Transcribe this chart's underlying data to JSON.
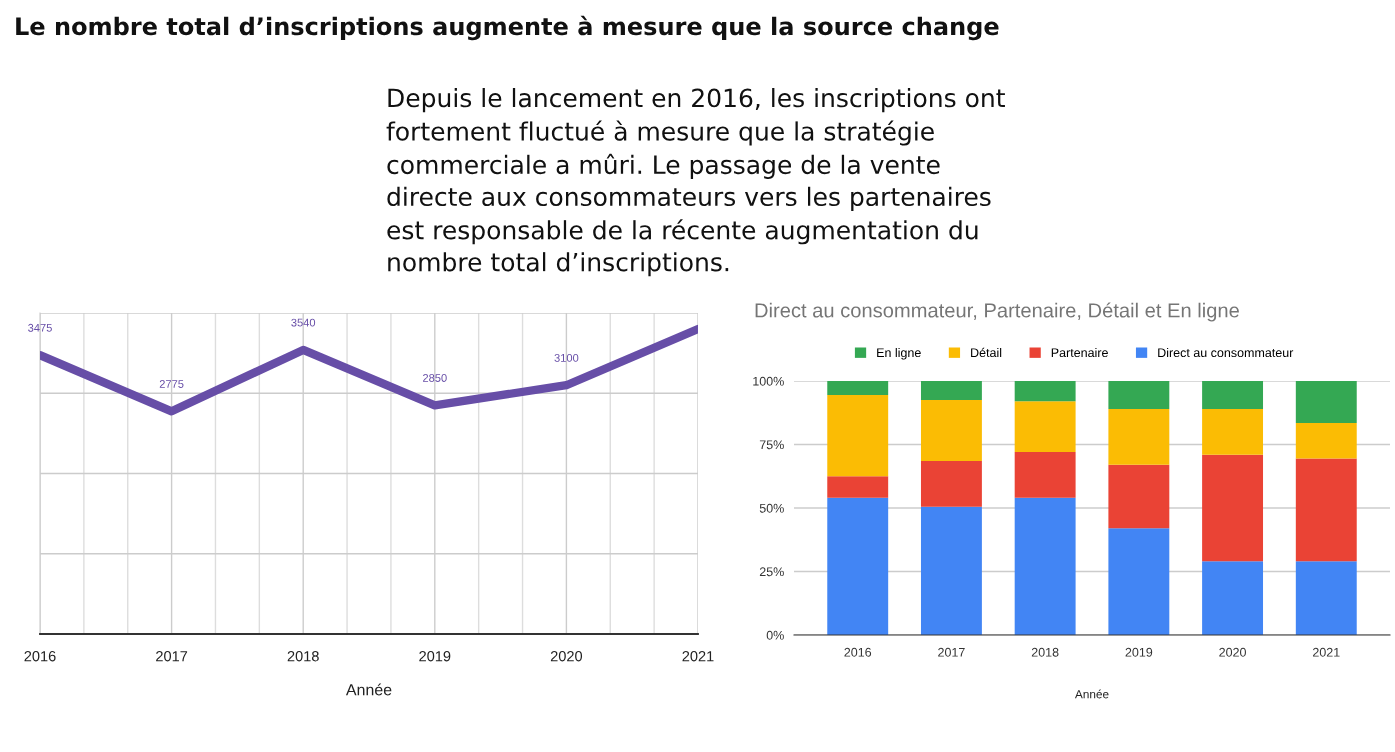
{
  "chart_data": [
    {
      "type": "other",
      "title": "Le nombre total d’inscriptions augmente à mesure que la source change",
      "annotations": [
        "Depuis le lancement en 2016, les inscriptions ont fortement fluctué à mesure que la stratégie commerciale a mûri. Le passage de la vente directe aux consommateurs vers les partenaires est responsable de la récente augmentation du nombre total d’inscriptions."
      ]
    },
    {
      "type": "line",
      "xlabel": "Année",
      "x": [
        2016,
        2017,
        2018,
        2019,
        2020,
        2021
      ],
      "series": [
        {
          "color": "#674ea7",
          "values": [
            3475,
            2775,
            3540,
            2850,
            3100,
            3800
          ],
          "value_labels": [
            "3475",
            "2775",
            "3540",
            "2850",
            "3100",
            null
          ]
        }
      ],
      "xlim": [
        2016,
        2021
      ],
      "xticks": [
        2016,
        2017,
        2018,
        2019,
        2020,
        2021
      ],
      "ylim": [
        0,
        4000
      ],
      "yticks": [
        {
          "value": 0,
          "label": null
        },
        {
          "value": 1000,
          "label": null
        },
        {
          "value": 2000,
          "label": null
        },
        {
          "value": 3000,
          "label": null
        },
        {
          "value": 4000,
          "label": null
        }
      ],
      "tick_labels": "x",
      "grid": true,
      "line_style": "solid"
    },
    {
      "type": "bar",
      "title": "Direct au consommateur, Partenaire, Détail et En ligne",
      "xlabel": "Année",
      "categories": [
        "2016",
        "2017",
        "2018",
        "2019",
        "2020",
        "2021"
      ],
      "stacked": true,
      "series": [
        {
          "name": "Direct au consommateur",
          "color": "#4285f4",
          "values": [
            54,
            50.5,
            54,
            42,
            29,
            29
          ]
        },
        {
          "name": "Partenaire",
          "color": "#ea4335",
          "values": [
            8.5,
            18,
            18,
            25,
            42,
            40.5
          ]
        },
        {
          "name": "Détail",
          "color": "#fbbc04",
          "values": [
            32,
            24,
            20,
            22,
            18,
            14
          ]
        },
        {
          "name": "En ligne",
          "color": "#34a853",
          "values": [
            5.5,
            7.5,
            8,
            11,
            11,
            16.5
          ]
        }
      ],
      "ylim": [
        0,
        100
      ],
      "yticks": [
        {
          "value": 0,
          "label": "0%"
        },
        {
          "value": 25,
          "label": "25%"
        },
        {
          "value": 50,
          "label": "50%"
        },
        {
          "value": 75,
          "label": "75%"
        },
        {
          "value": 100,
          "label": "100%"
        }
      ],
      "grid": "y",
      "legend": "top"
    }
  ]
}
